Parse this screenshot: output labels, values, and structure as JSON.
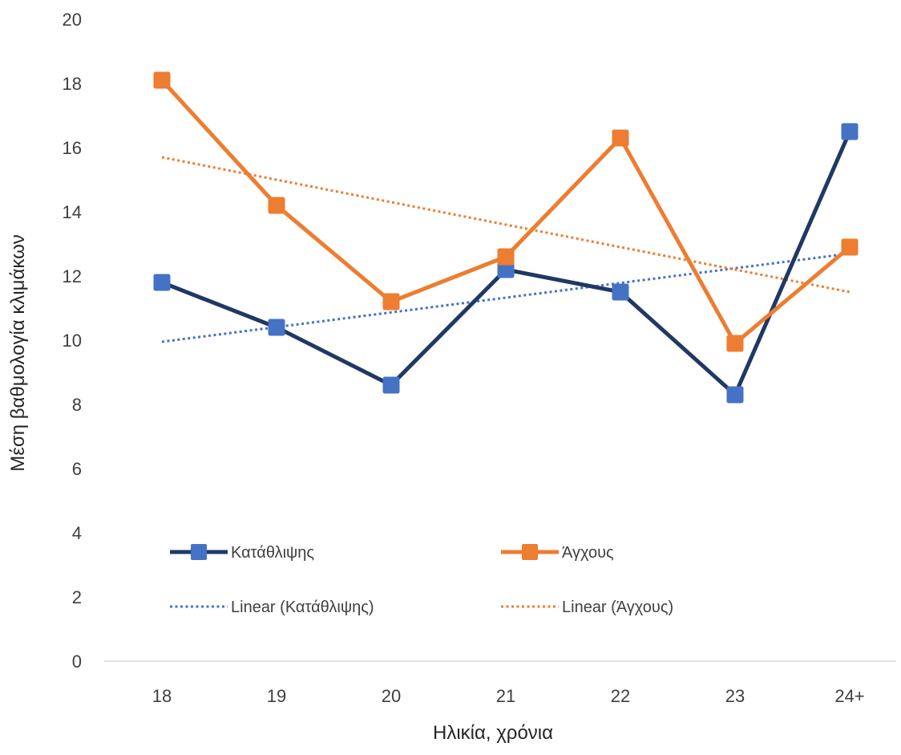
{
  "chart_data": {
    "type": "line",
    "xlabel": "Ηλικία, χρόνια",
    "ylabel": "Μέση βαθμολογία κλιμάκων",
    "categories": [
      "18",
      "19",
      "20",
      "21",
      "22",
      "23",
      "24+"
    ],
    "ylim": [
      0,
      20
    ],
    "yticks": [
      0,
      2,
      4,
      6,
      8,
      10,
      12,
      14,
      16,
      18,
      20
    ],
    "grid": false,
    "legend_position": "bottom-inside",
    "series": [
      {
        "name": "Κατάθλιψης",
        "color": "#203864",
        "marker": "square",
        "marker_color": "#4472C4",
        "values": [
          11.8,
          10.4,
          8.6,
          12.2,
          11.5,
          8.3,
          16.5
        ]
      },
      {
        "name": "Άγχους",
        "color": "#ED7D31",
        "marker": "square",
        "marker_color": "#ED7D31",
        "values": [
          18.1,
          14.2,
          11.2,
          12.6,
          16.3,
          9.9,
          12.9
        ]
      }
    ],
    "trendlines": [
      {
        "name": "Linear (Κατάθλιψης)",
        "color": "#4472C4",
        "style": "dotted",
        "start": 9.95,
        "end": 12.7
      },
      {
        "name": "Linear (Άγχους)",
        "color": "#ED7D31",
        "style": "dotted",
        "start": 15.7,
        "end": 11.5
      }
    ]
  }
}
